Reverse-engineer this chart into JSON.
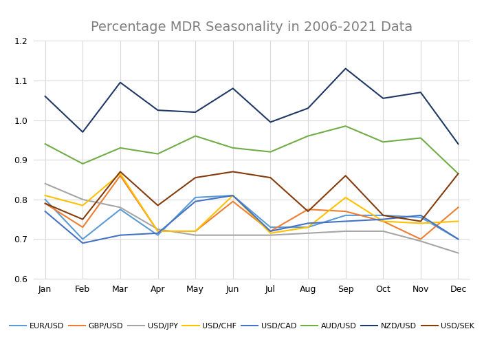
{
  "title": "Percentage MDR Seasonality in 2006-2021 Data",
  "months": [
    "Jan",
    "Feb",
    "Mar",
    "Apr",
    "May",
    "Jun",
    "Jul",
    "Aug",
    "Sep",
    "Oct",
    "Nov",
    "Dec"
  ],
  "series": {
    "EUR/USD": {
      "color": "#5b9bd5",
      "values": [
        0.8,
        0.7,
        0.775,
        0.71,
        0.805,
        0.81,
        0.73,
        0.73,
        0.76,
        0.76,
        0.755,
        0.7
      ]
    },
    "GBP/USD": {
      "color": "#ed7d31",
      "values": [
        0.79,
        0.73,
        0.86,
        0.72,
        0.72,
        0.795,
        0.72,
        0.775,
        0.77,
        0.745,
        0.7,
        0.78
      ]
    },
    "USD/JPY": {
      "color": "#a5a5a5",
      "values": [
        0.84,
        0.8,
        0.78,
        0.725,
        0.71,
        0.71,
        0.71,
        0.715,
        0.72,
        0.72,
        0.695,
        0.665
      ]
    },
    "USD/CHF": {
      "color": "#ffc000",
      "values": [
        0.81,
        0.785,
        0.865,
        0.72,
        0.72,
        0.81,
        0.715,
        0.73,
        0.805,
        0.745,
        0.74,
        0.745
      ]
    },
    "USD/CAD": {
      "color": "#4472c4",
      "values": [
        0.77,
        0.69,
        0.71,
        0.715,
        0.795,
        0.81,
        0.72,
        0.74,
        0.745,
        0.75,
        0.76,
        0.7
      ]
    },
    "AUD/USD": {
      "color": "#70ad47",
      "values": [
        0.94,
        0.89,
        0.93,
        0.915,
        0.96,
        0.93,
        0.92,
        0.96,
        0.985,
        0.945,
        0.955,
        0.865
      ]
    },
    "NZD/USD": {
      "color": "#1f3864",
      "values": [
        1.06,
        0.97,
        1.095,
        1.025,
        1.02,
        1.08,
        0.995,
        1.03,
        1.13,
        1.055,
        1.07,
        0.94
      ]
    },
    "USD/SEK": {
      "color": "#843c0c",
      "values": [
        0.79,
        0.75,
        0.87,
        0.785,
        0.855,
        0.87,
        0.855,
        0.77,
        0.86,
        0.76,
        0.745,
        0.865
      ]
    }
  },
  "ylim": [
    0.6,
    1.2
  ],
  "yticks": [
    0.6,
    0.7,
    0.8,
    0.9,
    1.0,
    1.1,
    1.2
  ],
  "background_color": "#ffffff",
  "grid_color": "#d9d9d9",
  "title_color": "#7f7f7f",
  "title_fontsize": 14,
  "legend_fontsize": 8,
  "tick_fontsize": 9,
  "linewidth": 1.5
}
